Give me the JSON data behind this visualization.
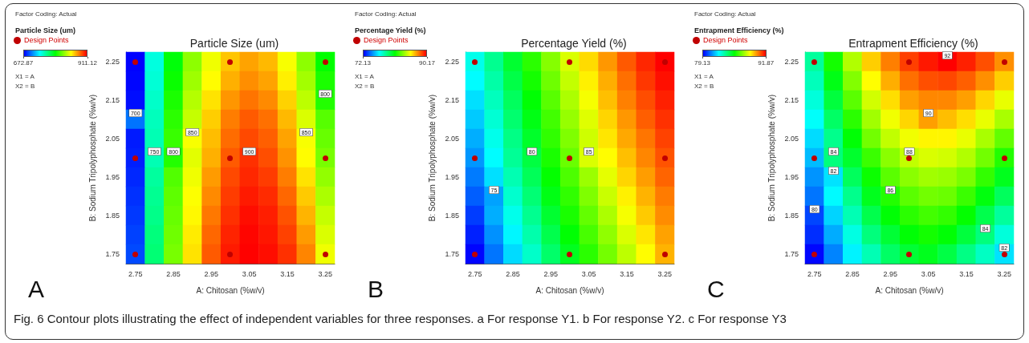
{
  "chart_data": [
    {
      "type": "heatmap",
      "title": "Particle Size (um)",
      "xlabel": "A: Chitosan (%w/v)",
      "ylabel": "B: Sodium Tripolyphosphate (%w/v)",
      "clabel": "Particle Size (um)",
      "categories": [
        "2.75",
        null,
        "2.85",
        null,
        "2.95",
        null,
        "3.05",
        null,
        "3.15",
        null,
        "3.25"
      ],
      "y_categories": [
        "2.25",
        null,
        "2.15",
        null,
        "2.05",
        null,
        "1.95",
        null,
        "1.85",
        null,
        "1.75"
      ],
      "cells": [
        [
          673,
          740,
          790,
          825,
          848,
          865,
          873,
          868,
          850,
          825,
          792
        ],
        [
          674,
          742,
          794,
          829,
          852,
          870,
          878,
          873,
          855,
          830,
          798
        ],
        [
          676,
          745,
          798,
          834,
          858,
          876,
          884,
          879,
          862,
          836,
          800
        ],
        [
          700,
          748,
          802,
          838,
          863,
          882,
          890,
          885,
          868,
          843,
          812
        ],
        [
          679,
          750,
          805,
          850,
          867,
          886,
          894,
          889,
          873,
          850,
          816
        ],
        [
          680,
          750,
          800,
          845,
          870,
          890,
          900,
          893,
          877,
          852,
          820
        ],
        [
          682,
          755,
          811,
          848,
          875,
          894,
          902,
          897,
          882,
          858,
          826
        ],
        [
          684,
          758,
          814,
          851,
          879,
          897,
          905,
          901,
          887,
          864,
          832
        ],
        [
          686,
          760,
          816,
          853,
          883,
          900,
          908,
          904,
          892,
          869,
          838
        ],
        [
          688,
          763,
          818,
          856,
          887,
          903,
          910,
          906,
          896,
          875,
          843
        ],
        [
          690,
          765,
          820,
          858,
          890,
          905,
          911,
          908,
          900,
          880,
          848
        ]
      ],
      "cell_labels": [
        [
          null,
          null,
          null,
          null,
          null,
          null,
          null,
          null,
          null,
          null,
          null
        ],
        [
          null,
          null,
          null,
          null,
          null,
          null,
          null,
          null,
          null,
          null,
          null
        ],
        [
          null,
          null,
          null,
          null,
          null,
          null,
          null,
          null,
          null,
          null,
          "800"
        ],
        [
          "700",
          null,
          null,
          null,
          null,
          null,
          null,
          null,
          null,
          null,
          null
        ],
        [
          null,
          null,
          null,
          "850",
          null,
          null,
          null,
          null,
          null,
          "850",
          null
        ],
        [
          null,
          "750",
          "800",
          null,
          null,
          null,
          "900",
          null,
          null,
          null,
          null
        ],
        [
          null,
          null,
          null,
          null,
          null,
          null,
          null,
          null,
          null,
          null,
          null
        ],
        [
          null,
          null,
          null,
          null,
          null,
          null,
          null,
          null,
          null,
          null,
          null
        ],
        [
          null,
          null,
          null,
          null,
          null,
          null,
          null,
          null,
          null,
          null,
          null
        ],
        [
          null,
          null,
          null,
          null,
          null,
          null,
          null,
          null,
          null,
          null,
          null
        ],
        [
          null,
          null,
          null,
          null,
          null,
          null,
          null,
          null,
          null,
          null,
          null
        ]
      ],
      "clim": [
        672.87,
        911.12
      ],
      "cticks": [
        672.87,
        911.12
      ],
      "annotations": [
        "Factor Coding: Actual",
        "Design Points",
        "X1 = A",
        "X2 = B",
        "A"
      ]
    },
    {
      "type": "heatmap",
      "title": "Percentage Yield (%)",
      "xlabel": "A: Chitosan (%w/v)",
      "ylabel": "B: Sodium Tripolyphosphate (%w/v)",
      "clabel": "Percentage Yield (%)",
      "categories": [
        "2.75",
        null,
        "2.85",
        null,
        "2.95",
        null,
        "3.05",
        null,
        "3.15",
        null,
        "3.25"
      ],
      "y_categories": [
        "2.25",
        null,
        "2.15",
        null,
        "2.05",
        null,
        "1.95",
        null,
        "1.85",
        null,
        "1.75"
      ],
      "cells": [
        [
          77.0,
          78.6,
          80.3,
          81.9,
          83.5,
          85.0,
          86.3,
          87.5,
          88.6,
          89.5,
          90.17
        ],
        [
          76.6,
          78.2,
          79.9,
          81.5,
          83.1,
          84.6,
          85.9,
          87.1,
          88.2,
          89.2,
          89.9
        ],
        [
          76.1,
          77.8,
          79.5,
          81.1,
          82.7,
          84.2,
          85.5,
          86.8,
          87.9,
          88.8,
          89.6
        ],
        [
          75.7,
          77.4,
          79.2,
          80.8,
          82.3,
          83.8,
          85.1,
          86.4,
          87.5,
          88.5,
          89.3
        ],
        [
          75.2,
          77.0,
          78.8,
          80.4,
          82.0,
          83.4,
          84.8,
          86.1,
          87.2,
          88.1,
          89.0
        ],
        [
          74.8,
          76.6,
          78.5,
          80,
          81.6,
          83.0,
          85,
          85.7,
          86.8,
          87.8,
          88.7
        ],
        [
          74.3,
          76.1,
          78.0,
          79.6,
          81.2,
          82.5,
          83.9,
          85.2,
          86.4,
          87.4,
          88.4
        ],
        [
          73.8,
          75,
          77.5,
          79.1,
          80.8,
          82.0,
          83.4,
          84.7,
          85.9,
          87.0,
          88.0
        ],
        [
          73.2,
          75.2,
          77.0,
          78.6,
          80.3,
          81.6,
          82.9,
          84.2,
          85.5,
          86.6,
          87.7
        ],
        [
          72.7,
          74.7,
          76.5,
          78.1,
          79.8,
          81.1,
          82.4,
          83.7,
          85.0,
          86.1,
          87.3
        ],
        [
          72.2,
          74.2,
          76.0,
          77.6,
          79.3,
          80.6,
          81.9,
          83.2,
          84.5,
          85.7,
          87.0
        ]
      ],
      "cell_labels": [
        [
          null,
          null,
          null,
          null,
          null,
          null,
          null,
          null,
          null,
          null,
          null
        ],
        [
          null,
          null,
          null,
          null,
          null,
          null,
          null,
          null,
          null,
          null,
          null
        ],
        [
          null,
          null,
          null,
          null,
          null,
          null,
          null,
          null,
          null,
          null,
          null
        ],
        [
          null,
          null,
          null,
          null,
          null,
          null,
          null,
          null,
          null,
          null,
          null
        ],
        [
          null,
          null,
          null,
          null,
          null,
          null,
          null,
          null,
          null,
          null,
          null
        ],
        [
          null,
          null,
          null,
          "80",
          null,
          null,
          "85",
          null,
          null,
          null,
          null
        ],
        [
          null,
          null,
          null,
          null,
          null,
          null,
          null,
          null,
          null,
          null,
          null
        ],
        [
          null,
          "75",
          null,
          null,
          null,
          null,
          null,
          null,
          null,
          null,
          null
        ],
        [
          null,
          null,
          null,
          null,
          null,
          null,
          null,
          null,
          null,
          null,
          null
        ],
        [
          null,
          null,
          null,
          null,
          null,
          null,
          null,
          null,
          null,
          null,
          null
        ],
        [
          null,
          null,
          null,
          null,
          null,
          null,
          null,
          null,
          null,
          null,
          null
        ]
      ],
      "clim": [
        72.13,
        90.17
      ],
      "cticks": [
        72.13,
        90.17
      ],
      "annotations": [
        "Factor Coding: Actual",
        "Design Points",
        "X1 = A",
        "X2 = B",
        "B"
      ]
    },
    {
      "type": "heatmap",
      "title": "Entrapment Efficiency (%)",
      "xlabel": "A: Chitosan (%w/v)",
      "ylabel": "B: Sodium Tripolyphosphate (%w/v)",
      "clabel": "Entrapment Efficiency (%)",
      "categories": [
        "2.75",
        null,
        "2.85",
        null,
        "2.95",
        null,
        "3.05",
        null,
        "3.15",
        null,
        "3.25"
      ],
      "y_categories": [
        "2.25",
        null,
        "2.15",
        null,
        "2.05",
        null,
        "1.95",
        null,
        "1.85",
        null,
        "1.75"
      ],
      "cells": [
        [
          83.6,
          85.8,
          87.8,
          89.4,
          90.4,
          91.2,
          91.7,
          92,
          91.6,
          91.0,
          90.2
        ],
        [
          83.2,
          85.3,
          87.2,
          88.8,
          89.8,
          90.6,
          91.0,
          91.1,
          90.8,
          90.2,
          89.4
        ],
        [
          82.8,
          84.8,
          86.7,
          88.2,
          89.2,
          90.0,
          90.3,
          90.3,
          90.0,
          89.3,
          88.5
        ],
        [
          82.4,
          84.3,
          86.1,
          87.6,
          88.6,
          89.3,
          90,
          89.6,
          89.2,
          88.5,
          87.7
        ],
        [
          81.9,
          83.8,
          85.5,
          87.0,
          88.0,
          88.6,
          88.9,
          88.9,
          88.5,
          87.7,
          86.8
        ],
        [
          81.5,
          84,
          85.0,
          86.3,
          87.3,
          88,
          88.3,
          88.2,
          87.8,
          87.0,
          86.0
        ],
        [
          81.0,
          82,
          84.4,
          85.7,
          86.7,
          87.3,
          87.6,
          87.5,
          87.1,
          86.2,
          85.2
        ],
        [
          80.6,
          82.3,
          83.8,
          85.2,
          86,
          86.7,
          87.0,
          86.9,
          86.3,
          85.4,
          84.4
        ],
        [
          80,
          81.8,
          83.3,
          84.6,
          85.5,
          86.1,
          86.4,
          86.2,
          85.6,
          84.6,
          83.6
        ],
        [
          79.7,
          81.3,
          82.7,
          84.0,
          84.9,
          85.5,
          85.8,
          85.5,
          84.8,
          84,
          82.8
        ],
        [
          79.2,
          80.8,
          82.2,
          83.3,
          84.3,
          84.9,
          85.2,
          84.7,
          83.9,
          83.1,
          82
        ]
      ],
      "cell_labels": [
        [
          null,
          null,
          null,
          null,
          null,
          null,
          null,
          "92",
          null,
          null,
          null
        ],
        [
          null,
          null,
          null,
          null,
          null,
          null,
          null,
          null,
          null,
          null,
          null
        ],
        [
          null,
          null,
          null,
          null,
          null,
          null,
          null,
          null,
          null,
          null,
          null
        ],
        [
          null,
          null,
          null,
          null,
          null,
          null,
          "90",
          null,
          null,
          null,
          null
        ],
        [
          null,
          null,
          null,
          null,
          null,
          null,
          null,
          null,
          null,
          null,
          null
        ],
        [
          null,
          "84",
          null,
          null,
          null,
          "88",
          null,
          null,
          null,
          null,
          null
        ],
        [
          null,
          "82",
          null,
          null,
          null,
          null,
          null,
          null,
          null,
          null,
          null
        ],
        [
          null,
          null,
          null,
          null,
          "86",
          null,
          null,
          null,
          null,
          null,
          null
        ],
        [
          "80",
          null,
          null,
          null,
          null,
          null,
          null,
          null,
          null,
          null,
          null
        ],
        [
          null,
          null,
          null,
          null,
          null,
          null,
          null,
          null,
          null,
          "84",
          null
        ],
        [
          null,
          null,
          null,
          null,
          null,
          null,
          null,
          null,
          null,
          null,
          "82"
        ]
      ],
      "clim": [
        79.13,
        92
      ],
      "cticks": [
        79.13,
        91.87
      ],
      "annotations": [
        "Factor Coding: Actual",
        "Design Points",
        "X1 = A",
        "X2 = B",
        "C"
      ]
    },
    {
      "type": "other",
      "annotations": [
        "Fig. 6 Contour plots illustrating the effect of independent variables for three responses. a For response Y1. b For response Y2. c For response Y3"
      ]
    }
  ]
}
